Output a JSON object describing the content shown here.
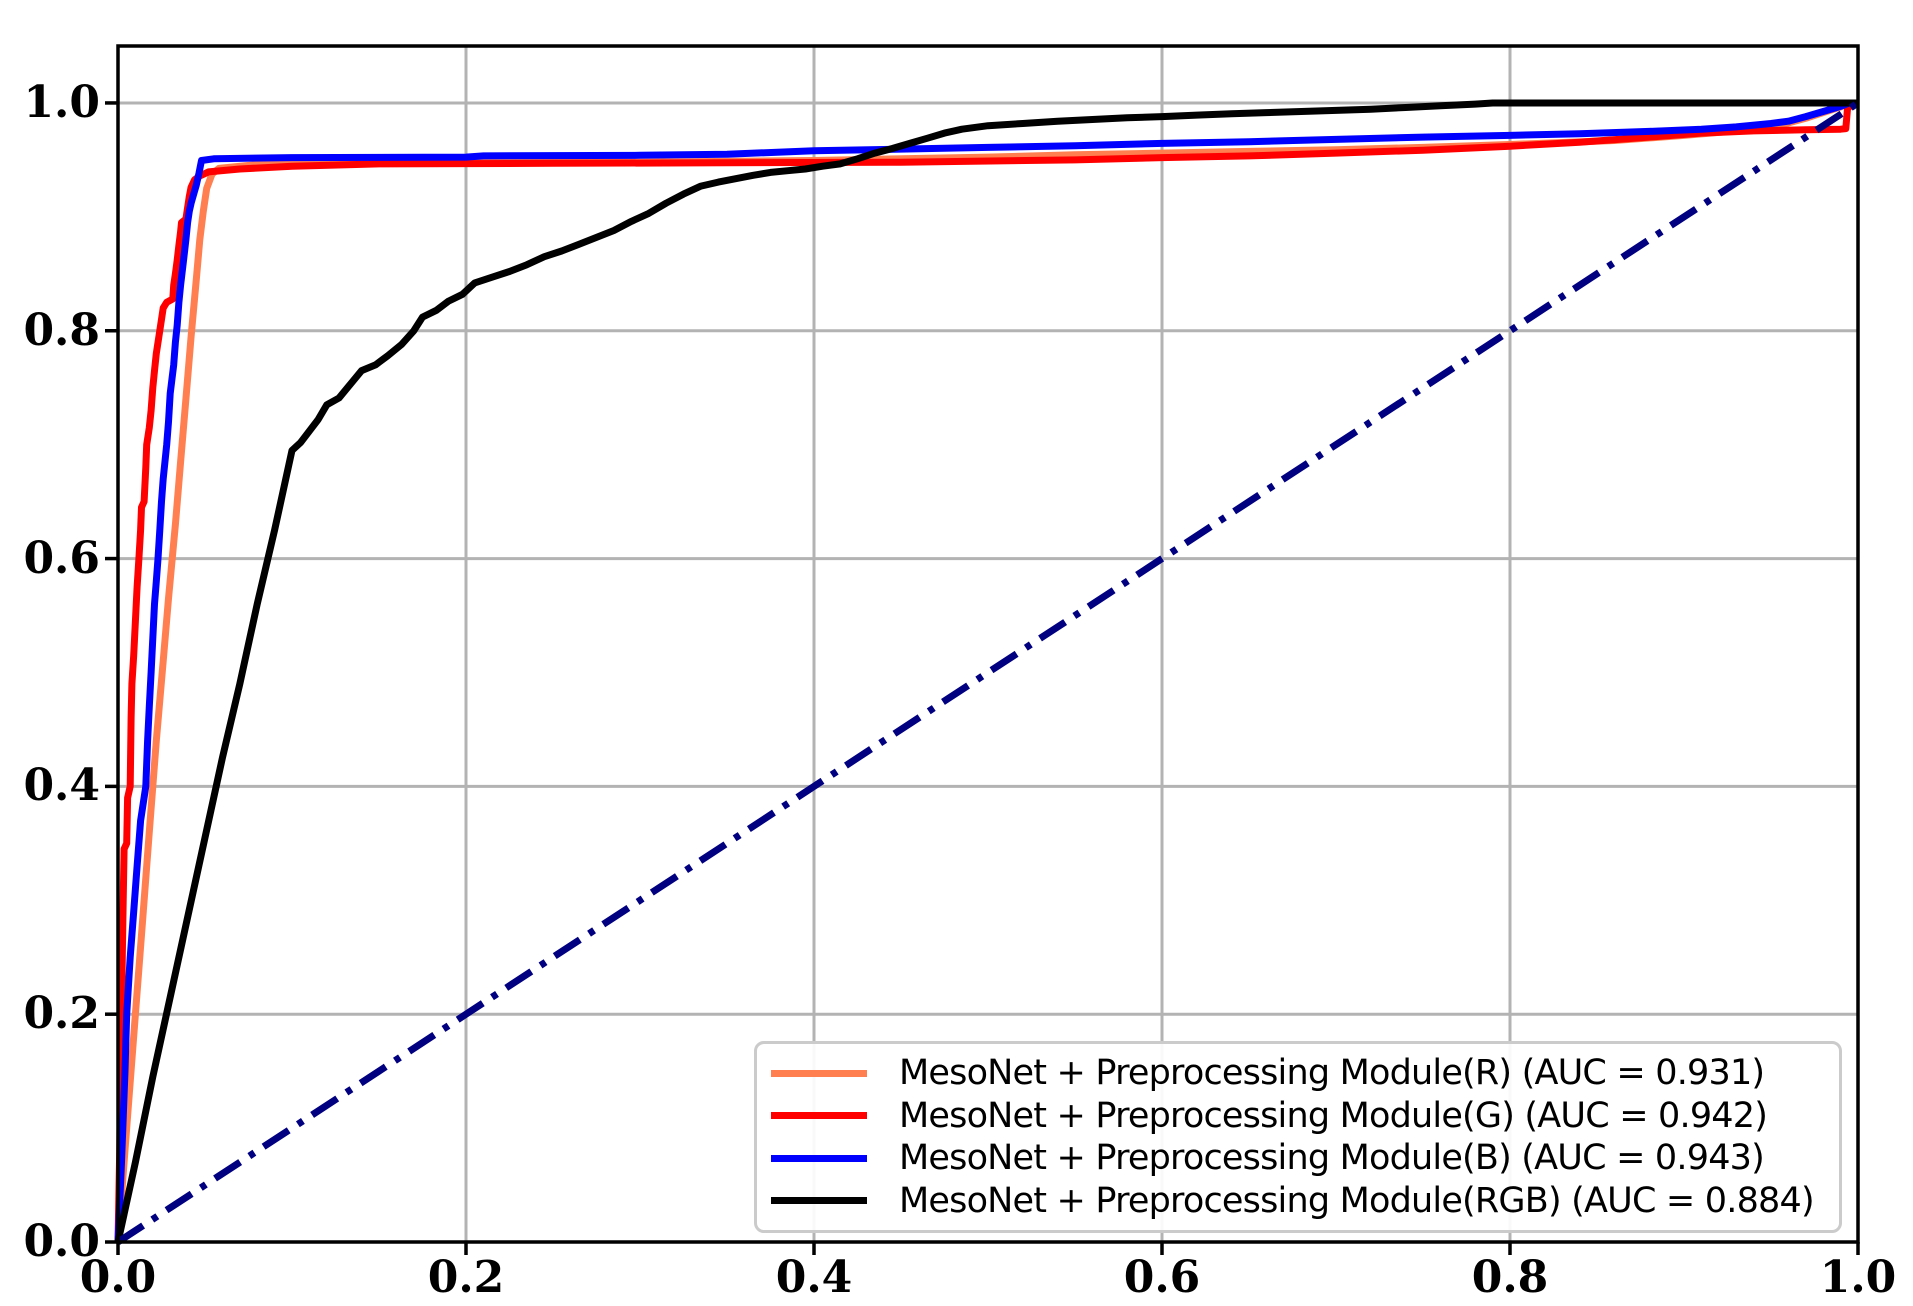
{
  "chart_data": {
    "type": "line",
    "description": "ROC curves comparing MesoNet with preprocessing module on R, G, B and RGB channels, with chance diagonal",
    "title": "",
    "xlabel": "",
    "ylabel": "",
    "xlim": [
      0.0,
      1.0
    ],
    "ylim": [
      0.0,
      1.05
    ],
    "grid": true,
    "legend_position": "lower right",
    "x_ticks": [
      0.0,
      0.2,
      0.4,
      0.6,
      0.8,
      1.0
    ],
    "y_ticks": [
      0.0,
      0.2,
      0.4,
      0.6,
      0.8,
      1.0
    ],
    "x_tick_labels": [
      "0.0",
      "0.2",
      "0.4",
      "0.6",
      "0.8",
      "1.0"
    ],
    "y_tick_labels": [
      "0.0",
      "0.2",
      "0.4",
      "0.6",
      "0.8",
      "1.0"
    ],
    "colors": {
      "grid": "#b3b3b3",
      "spine": "#000000",
      "legend_border": "#cbcbcb",
      "background": "#ffffff"
    },
    "series": [
      {
        "name": "mesonet-preprocessing-r",
        "label": "MesoNet + Preprocessing Module(R) (AUC = 0.931)",
        "auc": 0.931,
        "color": "#FF7F50",
        "style": "solid",
        "in_legend": true,
        "points": [
          [
            0,
            0
          ],
          [
            0.003,
            0.06
          ],
          [
            0.006,
            0.12
          ],
          [
            0.01,
            0.2
          ],
          [
            0.014,
            0.28
          ],
          [
            0.018,
            0.36
          ],
          [
            0.022,
            0.44
          ],
          [
            0.026,
            0.51
          ],
          [
            0.029,
            0.565
          ],
          [
            0.033,
            0.63
          ],
          [
            0.036,
            0.685
          ],
          [
            0.039,
            0.74
          ],
          [
            0.042,
            0.795
          ],
          [
            0.045,
            0.845
          ],
          [
            0.047,
            0.88
          ],
          [
            0.049,
            0.905
          ],
          [
            0.051,
            0.925
          ],
          [
            0.054,
            0.9375
          ],
          [
            0.058,
            0.9425
          ],
          [
            0.08,
            0.946
          ],
          [
            0.12,
            0.9475
          ],
          [
            0.2,
            0.9478
          ],
          [
            0.3,
            0.948
          ],
          [
            0.4,
            0.9495
          ],
          [
            0.5,
            0.9525
          ],
          [
            0.55,
            0.9545
          ],
          [
            0.6,
            0.956
          ],
          [
            0.65,
            0.9575
          ],
          [
            0.7,
            0.959
          ],
          [
            0.75,
            0.961
          ],
          [
            0.8,
            0.9635
          ],
          [
            0.86,
            0.967
          ],
          [
            0.9,
            0.9715
          ],
          [
            0.93,
            0.9755
          ],
          [
            0.955,
            0.9805
          ],
          [
            0.97,
            0.9865
          ],
          [
            0.98,
            0.9915
          ],
          [
            0.99,
            0.9965
          ],
          [
            0.995,
            1.0
          ],
          [
            1,
            1
          ]
        ]
      },
      {
        "name": "mesonet-preprocessing-g",
        "label": "MesoNet + Preprocessing Module(G) (AUC = 0.942)",
        "auc": 0.942,
        "color": "#FF0000",
        "style": "solid",
        "in_legend": true,
        "points": [
          [
            0,
            0
          ],
          [
            0.001,
            0.08
          ],
          [
            0.0015,
            0.14
          ],
          [
            0.002,
            0.2
          ],
          [
            0.0025,
            0.25
          ],
          [
            0.003,
            0.3
          ],
          [
            0.0035,
            0.345
          ],
          [
            0.005,
            0.35
          ],
          [
            0.0055,
            0.39
          ],
          [
            0.007,
            0.4
          ],
          [
            0.0075,
            0.46
          ],
          [
            0.008,
            0.49
          ],
          [
            0.009,
            0.515
          ],
          [
            0.01,
            0.545
          ],
          [
            0.011,
            0.575
          ],
          [
            0.012,
            0.6
          ],
          [
            0.013,
            0.625
          ],
          [
            0.0135,
            0.645
          ],
          [
            0.015,
            0.65
          ],
          [
            0.016,
            0.68
          ],
          [
            0.0165,
            0.7
          ],
          [
            0.018,
            0.715
          ],
          [
            0.019,
            0.73
          ],
          [
            0.02,
            0.75
          ],
          [
            0.021,
            0.765
          ],
          [
            0.022,
            0.78
          ],
          [
            0.0235,
            0.795
          ],
          [
            0.025,
            0.81
          ],
          [
            0.026,
            0.82
          ],
          [
            0.028,
            0.825
          ],
          [
            0.0315,
            0.828
          ],
          [
            0.032,
            0.84
          ],
          [
            0.033,
            0.85
          ],
          [
            0.034,
            0.862
          ],
          [
            0.035,
            0.875
          ],
          [
            0.036,
            0.887
          ],
          [
            0.0365,
            0.895
          ],
          [
            0.039,
            0.898
          ],
          [
            0.04,
            0.908
          ],
          [
            0.041,
            0.918
          ],
          [
            0.042,
            0.926
          ],
          [
            0.044,
            0.9325
          ],
          [
            0.047,
            0.936
          ],
          [
            0.052,
            0.9395
          ],
          [
            0.07,
            0.942
          ],
          [
            0.1,
            0.9445
          ],
          [
            0.15,
            0.9465
          ],
          [
            0.25,
            0.947
          ],
          [
            0.35,
            0.9475
          ],
          [
            0.45,
            0.948
          ],
          [
            0.55,
            0.95
          ],
          [
            0.6,
            0.952
          ],
          [
            0.65,
            0.9535
          ],
          [
            0.7,
            0.956
          ],
          [
            0.75,
            0.9585
          ],
          [
            0.8,
            0.962
          ],
          [
            0.84,
            0.9655
          ],
          [
            0.88,
            0.97
          ],
          [
            0.91,
            0.9735
          ],
          [
            0.94,
            0.9755
          ],
          [
            0.97,
            0.9765
          ],
          [
            0.99,
            0.977
          ],
          [
            0.993,
            0.9775
          ],
          [
            0.994,
            0.996
          ],
          [
            1,
            1
          ]
        ]
      },
      {
        "name": "mesonet-preprocessing-b",
        "label": "MesoNet + Preprocessing Module(B) (AUC = 0.943)",
        "auc": 0.943,
        "color": "#0000FF",
        "style": "solid",
        "in_legend": true,
        "points": [
          [
            0,
            0
          ],
          [
            0.002,
            0.07
          ],
          [
            0.004,
            0.15
          ],
          [
            0.005,
            0.2
          ],
          [
            0.007,
            0.25
          ],
          [
            0.009,
            0.29
          ],
          [
            0.011,
            0.33
          ],
          [
            0.013,
            0.37
          ],
          [
            0.016,
            0.4
          ],
          [
            0.017,
            0.44
          ],
          [
            0.018,
            0.47
          ],
          [
            0.019,
            0.5
          ],
          [
            0.02,
            0.53
          ],
          [
            0.021,
            0.56
          ],
          [
            0.022,
            0.58
          ],
          [
            0.023,
            0.6
          ],
          [
            0.024,
            0.625
          ],
          [
            0.025,
            0.65
          ],
          [
            0.026,
            0.67
          ],
          [
            0.028,
            0.7
          ],
          [
            0.029,
            0.72
          ],
          [
            0.03,
            0.745
          ],
          [
            0.032,
            0.77
          ],
          [
            0.033,
            0.79
          ],
          [
            0.034,
            0.805
          ],
          [
            0.035,
            0.825
          ],
          [
            0.036,
            0.84
          ],
          [
            0.0375,
            0.86
          ],
          [
            0.039,
            0.88
          ],
          [
            0.04,
            0.895
          ],
          [
            0.041,
            0.905
          ],
          [
            0.042,
            0.912
          ],
          [
            0.0435,
            0.92
          ],
          [
            0.045,
            0.928
          ],
          [
            0.0465,
            0.938
          ],
          [
            0.048,
            0.9495
          ],
          [
            0.055,
            0.951
          ],
          [
            0.1,
            0.952
          ],
          [
            0.2,
            0.9525
          ],
          [
            0.21,
            0.9535
          ],
          [
            0.3,
            0.954
          ],
          [
            0.35,
            0.955
          ],
          [
            0.4,
            0.958
          ],
          [
            0.45,
            0.9595
          ],
          [
            0.5,
            0.961
          ],
          [
            0.55,
            0.9625
          ],
          [
            0.6,
            0.9645
          ],
          [
            0.65,
            0.966
          ],
          [
            0.7,
            0.968
          ],
          [
            0.75,
            0.97
          ],
          [
            0.8,
            0.9715
          ],
          [
            0.84,
            0.973
          ],
          [
            0.88,
            0.975
          ],
          [
            0.91,
            0.977
          ],
          [
            0.93,
            0.979
          ],
          [
            0.95,
            0.982
          ],
          [
            0.96,
            0.984
          ],
          [
            0.97,
            0.988
          ],
          [
            0.98,
            0.9925
          ],
          [
            0.99,
            0.997
          ],
          [
            0.995,
            1.0
          ],
          [
            1,
            1
          ]
        ]
      },
      {
        "name": "mesonet-preprocessing-rgb",
        "label": "MesoNet + Preprocessing Module(RGB) (AUC = 0.884)",
        "auc": 0.884,
        "color": "#000000",
        "style": "solid",
        "in_legend": true,
        "points": [
          [
            0,
            0
          ],
          [
            0.01,
            0.07
          ],
          [
            0.02,
            0.145
          ],
          [
            0.03,
            0.215
          ],
          [
            0.04,
            0.285
          ],
          [
            0.05,
            0.355
          ],
          [
            0.06,
            0.425
          ],
          [
            0.07,
            0.49
          ],
          [
            0.08,
            0.56
          ],
          [
            0.09,
            0.625
          ],
          [
            0.1,
            0.695
          ],
          [
            0.105,
            0.702
          ],
          [
            0.11,
            0.712
          ],
          [
            0.115,
            0.722
          ],
          [
            0.12,
            0.735
          ],
          [
            0.127,
            0.741
          ],
          [
            0.133,
            0.752
          ],
          [
            0.14,
            0.765
          ],
          [
            0.148,
            0.77
          ],
          [
            0.155,
            0.778
          ],
          [
            0.163,
            0.788
          ],
          [
            0.17,
            0.8
          ],
          [
            0.175,
            0.812
          ],
          [
            0.183,
            0.818
          ],
          [
            0.19,
            0.826
          ],
          [
            0.198,
            0.832
          ],
          [
            0.205,
            0.842
          ],
          [
            0.215,
            0.847
          ],
          [
            0.225,
            0.852
          ],
          [
            0.235,
            0.858
          ],
          [
            0.245,
            0.865
          ],
          [
            0.255,
            0.87
          ],
          [
            0.265,
            0.876
          ],
          [
            0.275,
            0.882
          ],
          [
            0.285,
            0.888
          ],
          [
            0.295,
            0.896
          ],
          [
            0.305,
            0.903
          ],
          [
            0.315,
            0.912
          ],
          [
            0.325,
            0.92
          ],
          [
            0.335,
            0.927
          ],
          [
            0.345,
            0.9305
          ],
          [
            0.355,
            0.9335
          ],
          [
            0.365,
            0.9365
          ],
          [
            0.375,
            0.939
          ],
          [
            0.385,
            0.9405
          ],
          [
            0.395,
            0.942
          ],
          [
            0.405,
            0.9445
          ],
          [
            0.415,
            0.9465
          ],
          [
            0.425,
            0.951
          ],
          [
            0.435,
            0.956
          ],
          [
            0.445,
            0.96
          ],
          [
            0.455,
            0.9645
          ],
          [
            0.465,
            0.969
          ],
          [
            0.475,
            0.9735
          ],
          [
            0.485,
            0.977
          ],
          [
            0.5,
            0.98
          ],
          [
            0.52,
            0.982
          ],
          [
            0.54,
            0.984
          ],
          [
            0.56,
            0.9855
          ],
          [
            0.58,
            0.987
          ],
          [
            0.6,
            0.988
          ],
          [
            0.62,
            0.9893
          ],
          [
            0.64,
            0.9905
          ],
          [
            0.66,
            0.9915
          ],
          [
            0.68,
            0.9925
          ],
          [
            0.7,
            0.9935
          ],
          [
            0.72,
            0.9945
          ],
          [
            0.74,
            0.996
          ],
          [
            0.76,
            0.9975
          ],
          [
            0.78,
            0.999
          ],
          [
            0.79,
            1.0
          ],
          [
            1,
            1
          ]
        ]
      },
      {
        "name": "chance-diagonal",
        "label": "",
        "color": "#000080",
        "style": "dashdot",
        "in_legend": false,
        "points": [
          [
            0,
            0
          ],
          [
            1,
            1
          ]
        ]
      }
    ]
  }
}
